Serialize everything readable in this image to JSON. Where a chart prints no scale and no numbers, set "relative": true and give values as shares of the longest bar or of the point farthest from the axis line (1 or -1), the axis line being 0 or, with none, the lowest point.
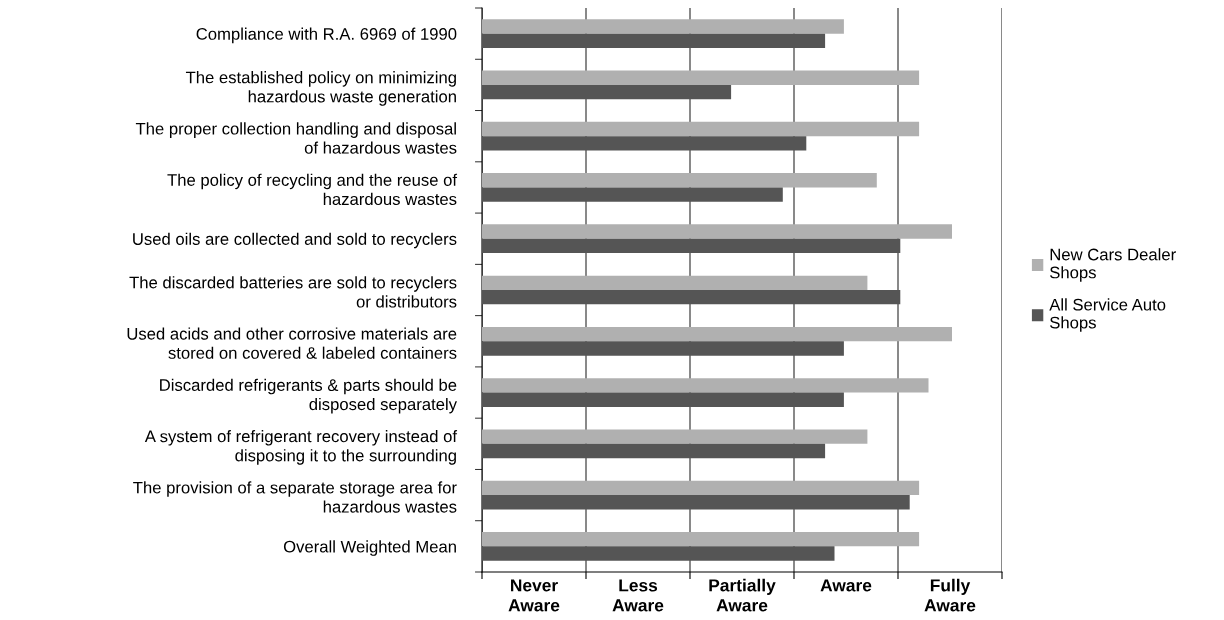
{
  "chart_data": {
    "type": "bar",
    "orientation": "horizontal",
    "relative": true,
    "categories": [
      "Compliance with R.A. 6969 of 1990",
      "The established policy on minimizing\nhazardous waste generation",
      "The proper collection handling and disposal\nof hazardous wastes",
      "The policy of recycling and the reuse of\nhazardous wastes",
      "Used oils are collected and sold to recyclers",
      "The discarded batteries are sold to recyclers\nor distributors",
      "Used acids and other corrosive materials are\nstored on covered & labeled containers",
      "Discarded refrigerants & parts should be\ndisposed separately",
      "A system of refrigerant recovery instead of\ndisposing it to the surrounding",
      "The provision of a separate storage area for\nhazardous wastes",
      "Overall Weighted Mean"
    ],
    "series": [
      {
        "name": "New Cars Dealer\nShops",
        "color": "#b0b0b0",
        "values": [
          0.77,
          0.93,
          0.93,
          0.84,
          1,
          0.82,
          1,
          0.95,
          0.82,
          0.93,
          0.93
        ]
      },
      {
        "name": "All Service Auto\nShops",
        "color": "#555555",
        "values": [
          0.73,
          0.53,
          0.69,
          0.64,
          0.89,
          0.89,
          0.77,
          0.77,
          0.73,
          0.91,
          0.75
        ]
      }
    ],
    "annotations": [
      "Never\nAware",
      "Less\nAware",
      "Partially\nAware",
      "Aware",
      "Fully\nAware"
    ],
    "grid": "x",
    "legend": "right"
  }
}
